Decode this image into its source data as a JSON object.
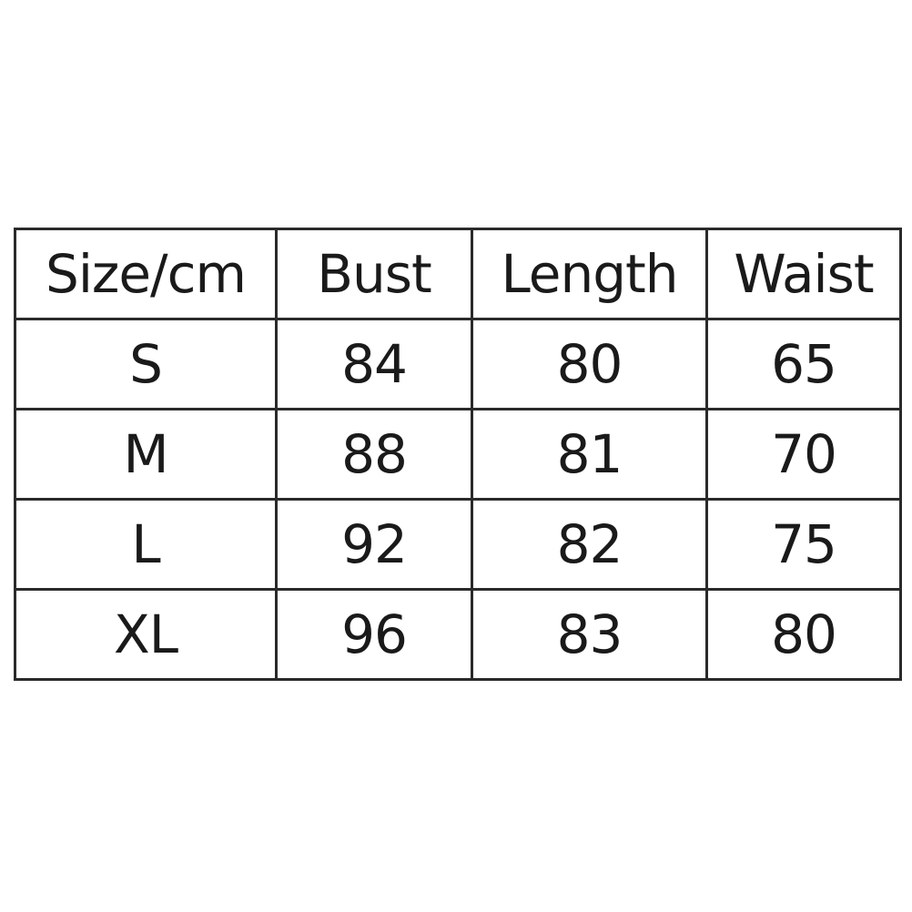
{
  "table": {
    "headers": [
      "Size/cm",
      "Bust",
      "Length",
      "Waist"
    ],
    "rows": [
      [
        "S",
        "84",
        "80",
        "65"
      ],
      [
        "M",
        "88",
        "81",
        "70"
      ],
      [
        "L",
        "92",
        "82",
        "75"
      ],
      [
        "XL",
        "96",
        "83",
        "80"
      ]
    ]
  }
}
